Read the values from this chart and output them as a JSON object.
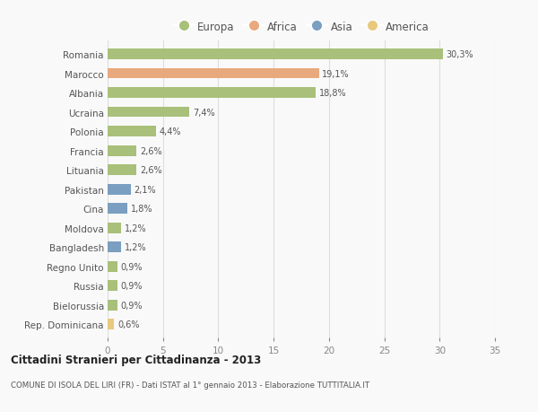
{
  "categories": [
    "Romania",
    "Marocco",
    "Albania",
    "Ucraina",
    "Polonia",
    "Francia",
    "Lituania",
    "Pakistan",
    "Cina",
    "Moldova",
    "Bangladesh",
    "Regno Unito",
    "Russia",
    "Bielorussia",
    "Rep. Dominicana"
  ],
  "values": [
    30.3,
    19.1,
    18.8,
    7.4,
    4.4,
    2.6,
    2.6,
    2.1,
    1.8,
    1.2,
    1.2,
    0.9,
    0.9,
    0.9,
    0.6
  ],
  "labels": [
    "30,3%",
    "19,1%",
    "18,8%",
    "7,4%",
    "4,4%",
    "2,6%",
    "2,6%",
    "2,1%",
    "1,8%",
    "1,2%",
    "1,2%",
    "0,9%",
    "0,9%",
    "0,9%",
    "0,6%"
  ],
  "continents": [
    "Europa",
    "Africa",
    "Europa",
    "Europa",
    "Europa",
    "Europa",
    "Europa",
    "Asia",
    "Asia",
    "Europa",
    "Asia",
    "Europa",
    "Europa",
    "Europa",
    "America"
  ],
  "colors": {
    "Europa": "#a8c07a",
    "Africa": "#e8a97e",
    "Asia": "#7a9fc0",
    "America": "#e8c97e"
  },
  "xlim": [
    0,
    35
  ],
  "xticks": [
    0,
    5,
    10,
    15,
    20,
    25,
    30,
    35
  ],
  "title": "Cittadini Stranieri per Cittadinanza - 2013",
  "subtitle": "COMUNE DI ISOLA DEL LIRI (FR) - Dati ISTAT al 1° gennaio 2013 - Elaborazione TUTTITALIA.IT",
  "background_color": "#f9f9f9",
  "grid_color": "#dddddd",
  "bar_height": 0.55
}
